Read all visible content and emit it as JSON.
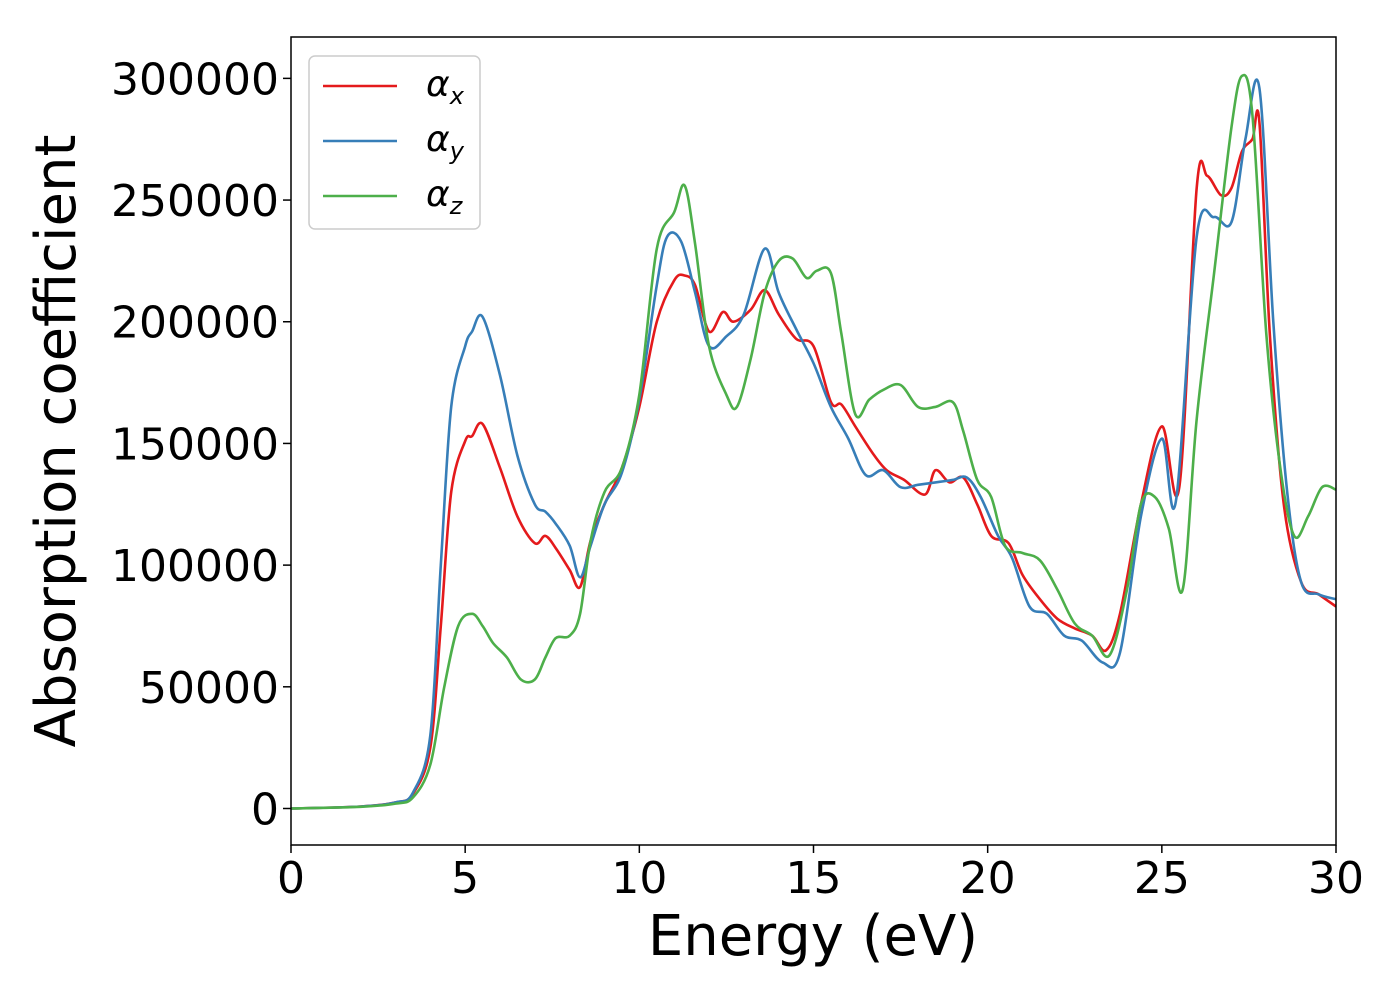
{
  "chart_data": {
    "type": "line",
    "xlabel": "Energy (eV)",
    "ylabel": "Absorption coefficient",
    "xlim": [
      0,
      30
    ],
    "ylim": [
      -15000,
      317000
    ],
    "xticks": [
      0,
      5,
      10,
      15,
      20,
      25,
      30
    ],
    "yticks": [
      0,
      50000,
      100000,
      150000,
      200000,
      250000,
      300000
    ],
    "grid": false,
    "legend_position": "top-left",
    "series": [
      {
        "name": "α",
        "subscript": "x",
        "color": "#e41a1c",
        "x": [
          0,
          2,
          3,
          3.5,
          4,
          4.3,
          4.6,
          5,
          5.2,
          5.5,
          6,
          6.5,
          7,
          7.3,
          7.6,
          8,
          8.3,
          8.6,
          9,
          9.5,
          10,
          10.5,
          11,
          11.3,
          11.6,
          12,
          12.4,
          12.7,
          13.2,
          13.6,
          14,
          14.5,
          15,
          15.5,
          15.8,
          16.2,
          16.7,
          17.1,
          17.6,
          18.2,
          18.5,
          18.9,
          19.3,
          19.7,
          20.1,
          20.6,
          21,
          21.5,
          22,
          22.5,
          23,
          23.4,
          23.8,
          24.4,
          25,
          25.5,
          26,
          26.3,
          26.7,
          27,
          27.3,
          27.6,
          27.8,
          28.1,
          28.5,
          29,
          29.5,
          30
        ],
        "y": [
          0,
          800,
          2500,
          6000,
          25000,
          75000,
          130000,
          151000,
          153000,
          158000,
          140000,
          120000,
          109000,
          112000,
          107000,
          98000,
          91000,
          110000,
          125000,
          140000,
          165000,
          200000,
          217000,
          219000,
          215000,
          196000,
          204000,
          200000,
          205000,
          213000,
          203000,
          193000,
          190000,
          167000,
          166000,
          157000,
          146000,
          139000,
          135000,
          129000,
          139000,
          134000,
          136000,
          125000,
          112000,
          109000,
          96000,
          86000,
          78000,
          74000,
          71000,
          65000,
          80000,
          125000,
          157000,
          132000,
          255000,
          260000,
          252000,
          255000,
          270000,
          275000,
          282000,
          195000,
          125000,
          93000,
          88000,
          83000
        ]
      },
      {
        "name": "α",
        "subscript": "y",
        "color": "#377eb8",
        "x": [
          0,
          2,
          3,
          3.5,
          4,
          4.3,
          4.6,
          5,
          5.2,
          5.5,
          6,
          6.5,
          7,
          7.3,
          7.6,
          8,
          8.3,
          8.6,
          9,
          9.5,
          10,
          10.5,
          10.8,
          11.2,
          11.6,
          12,
          12.5,
          13,
          13.6,
          14,
          14.5,
          15,
          15.5,
          16,
          16.5,
          17,
          17.5,
          18,
          18.5,
          19,
          19.4,
          19.8,
          20.3,
          20.7,
          21.2,
          21.7,
          22.2,
          22.7,
          23.3,
          23.8,
          24.4,
          25,
          25.4,
          26,
          26.5,
          27,
          27.4,
          27.8,
          28.2,
          28.6,
          29,
          29.5,
          30
        ],
        "y": [
          0,
          800,
          2500,
          6500,
          30000,
          100000,
          165000,
          190000,
          196000,
          202000,
          178000,
          145000,
          125000,
          122000,
          117000,
          108000,
          95000,
          108000,
          125000,
          138000,
          168000,
          215000,
          235000,
          233000,
          212000,
          190000,
          194000,
          203000,
          230000,
          212000,
          197000,
          183000,
          165000,
          152000,
          137000,
          139000,
          132000,
          133000,
          134000,
          135000,
          136000,
          128000,
          112000,
          103000,
          83000,
          80000,
          71000,
          69000,
          60000,
          64000,
          120000,
          152000,
          126000,
          235000,
          243000,
          241000,
          275000,
          296000,
          200000,
          130000,
          93000,
          88000,
          86000
        ]
      },
      {
        "name": "α",
        "subscript": "z",
        "color": "#4daf4a",
        "x": [
          0,
          2,
          3,
          3.5,
          4,
          4.4,
          4.8,
          5.2,
          5.5,
          5.8,
          6.2,
          6.6,
          7,
          7.3,
          7.6,
          8,
          8.3,
          8.6,
          9,
          9.5,
          10,
          10.5,
          11,
          11.3,
          11.6,
          12,
          12.5,
          12.8,
          13.2,
          13.6,
          14,
          14.4,
          14.8,
          15.1,
          15.5,
          15.8,
          16.2,
          16.6,
          17,
          17.5,
          18,
          18.5,
          19,
          19.3,
          19.7,
          20.1,
          20.5,
          21,
          21.5,
          22,
          22.5,
          23,
          23.5,
          24,
          24.4,
          24.8,
          25.2,
          25.6,
          26,
          26.5,
          27,
          27.3,
          27.6,
          28,
          28.4,
          28.8,
          29.2,
          29.6,
          30
        ],
        "y": [
          0,
          700,
          2000,
          4500,
          18000,
          50000,
          75000,
          80000,
          75000,
          68000,
          62000,
          53000,
          53000,
          62000,
          70000,
          71000,
          80000,
          110000,
          130000,
          140000,
          170000,
          230000,
          245000,
          256000,
          232000,
          190000,
          170000,
          165000,
          185000,
          212000,
          225000,
          226000,
          218000,
          221000,
          220000,
          195000,
          162000,
          168000,
          172000,
          174000,
          165000,
          165000,
          167000,
          155000,
          135000,
          128000,
          108000,
          105000,
          102000,
          90000,
          76000,
          71000,
          63000,
          90000,
          125000,
          128000,
          115000,
          90000,
          160000,
          220000,
          280000,
          301000,
          285000,
          195000,
          140000,
          112000,
          120000,
          132000,
          131000
        ]
      }
    ]
  }
}
